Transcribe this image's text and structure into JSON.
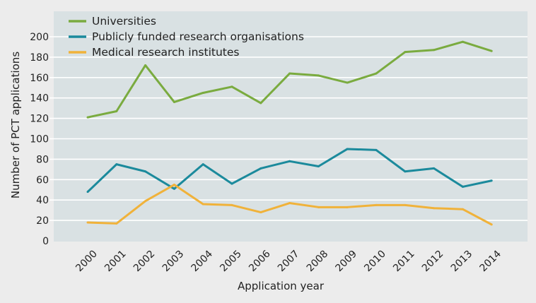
{
  "chart_data": {
    "type": "line",
    "title": "",
    "xlabel": "Application year",
    "ylabel": "Number of PCT applications",
    "ylim": [
      0,
      200
    ],
    "yticks": [
      0,
      20,
      40,
      60,
      80,
      100,
      120,
      140,
      160,
      180,
      200
    ],
    "grid": true,
    "legend_position": "top-left",
    "x": [
      "2000",
      "2001",
      "2002",
      "2003",
      "2004",
      "2005",
      "2006",
      "2007",
      "2008",
      "2009",
      "2010",
      "2011",
      "2012",
      "2013",
      "2014"
    ],
    "series": [
      {
        "name": "Universities",
        "color": "#7aab3f",
        "values": [
          121,
          127,
          172,
          136,
          145,
          151,
          135,
          164,
          162,
          155,
          164,
          185,
          187,
          195,
          186
        ]
      },
      {
        "name": "Publicly funded research organisations",
        "color": "#1b8a9c",
        "values": [
          48,
          75,
          68,
          51,
          75,
          56,
          71,
          78,
          73,
          90,
          89,
          68,
          71,
          53,
          59
        ]
      },
      {
        "name": "Medical research institutes",
        "color": "#f0b23a",
        "values": [
          18,
          17,
          39,
          55,
          36,
          35,
          28,
          37,
          33,
          33,
          35,
          35,
          32,
          31,
          16
        ]
      }
    ]
  }
}
